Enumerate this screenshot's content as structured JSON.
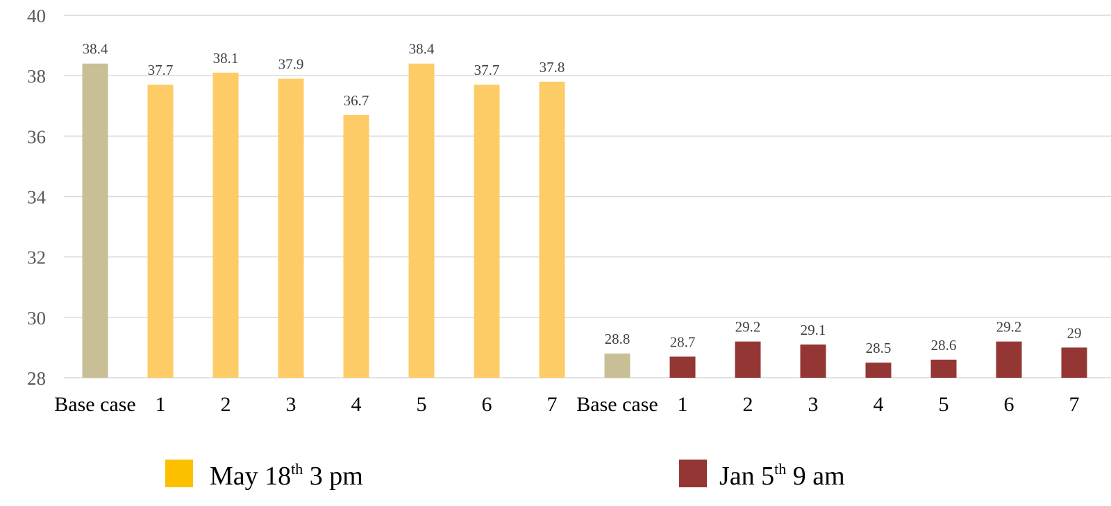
{
  "chart_data": {
    "type": "bar",
    "ylim": [
      28,
      40
    ],
    "yticks": [
      28,
      30,
      32,
      34,
      36,
      38,
      40
    ],
    "grid": true,
    "legend_position": "bottom",
    "groups": [
      {
        "categories": [
          "Base case",
          "1",
          "2",
          "3",
          "4",
          "5",
          "6",
          "7"
        ],
        "values": [
          38.4,
          37.7,
          38.1,
          37.9,
          36.7,
          38.4,
          37.7,
          37.8
        ],
        "labels": [
          "38.4",
          "37.7",
          "38.1",
          "37.9",
          "36.7",
          "38.4",
          "37.7",
          "37.8"
        ],
        "base_color": "#c8bf97",
        "color": "#fdcc66"
      },
      {
        "categories": [
          "Base case",
          "1",
          "2",
          "3",
          "4",
          "5",
          "6",
          "7"
        ],
        "values": [
          28.8,
          28.7,
          29.2,
          29.1,
          28.5,
          28.6,
          29.2,
          29.0
        ],
        "labels": [
          "28.8",
          "28.7",
          "29.2",
          "29.1",
          "28.5",
          "28.6",
          "29.2",
          "29"
        ],
        "base_color": "#c8bf97",
        "color": "#943634"
      }
    ],
    "legend": [
      {
        "text_main": "May 18",
        "sup": "th",
        "text_rest": " 3 pm",
        "color": "#fdc000"
      },
      {
        "text_main": "Jan 5",
        "sup": "th",
        "text_rest": " 9 am",
        "color": "#943634"
      }
    ]
  }
}
